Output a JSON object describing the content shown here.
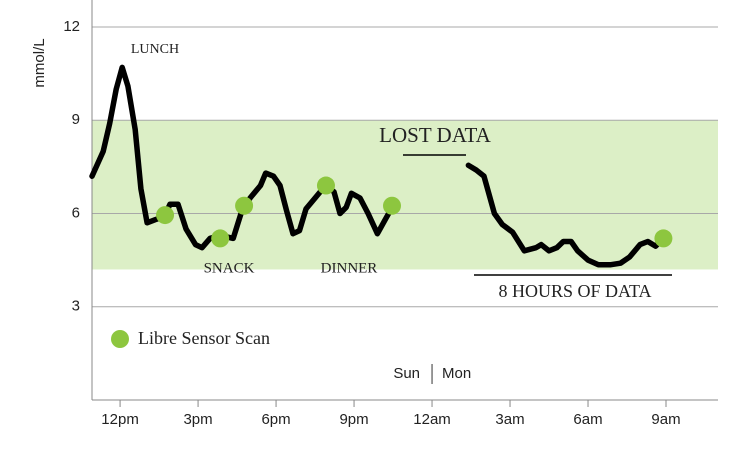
{
  "chart_data": {
    "type": "line",
    "y_label": "mmol/L",
    "ylim": [
      0,
      12.87
    ],
    "yticks": [
      3,
      6,
      9,
      12
    ],
    "xlim": [
      10.92,
      35
    ],
    "xticks": [
      {
        "value": 12,
        "label": "12pm"
      },
      {
        "value": 15,
        "label": "3pm"
      },
      {
        "value": 18,
        "label": "6pm"
      },
      {
        "value": 21,
        "label": "9pm"
      },
      {
        "value": 24,
        "label": "12am"
      },
      {
        "value": 27,
        "label": "3am"
      },
      {
        "value": 30,
        "label": "6am"
      },
      {
        "value": 33,
        "label": "9am"
      }
    ],
    "grid": true,
    "target_range": [
      4.2,
      9
    ],
    "target_color": "#dcefc6",
    "day_labels": [
      "Sun",
      "Mon"
    ],
    "annotations": [
      "LUNCH",
      "SNACK",
      "DINNER",
      "LOST DATA",
      "8 HOURS OF DATA"
    ],
    "series": [
      {
        "color": "#000000",
        "x": [
          10.92,
          11.35,
          11.6,
          11.85,
          12.08,
          12.3,
          12.58,
          12.8,
          13.04,
          13.35,
          13.7,
          13.92,
          14.23,
          14.54,
          14.9,
          15.15,
          15.46,
          15.85,
          16.35,
          16.65,
          17.0,
          17.4,
          17.6,
          17.9,
          18.15,
          18.4,
          18.65,
          18.9,
          19.15,
          19.5,
          19.9,
          20.23,
          20.46,
          20.7,
          20.9,
          21.23,
          21.54,
          21.9,
          22.23,
          22.5,
          null,
          25.4,
          25.7,
          26.0,
          26.4,
          26.7,
          27.1,
          27.55,
          28.0,
          28.2,
          28.5,
          28.8,
          29.05,
          29.35,
          29.6,
          30.0,
          30.4,
          30.85,
          31.25,
          31.6,
          32.0,
          32.3,
          32.6,
          32.9
        ],
        "values": [
          7.2,
          8.0,
          8.9,
          10.0,
          10.7,
          10.1,
          8.7,
          6.8,
          5.7,
          5.8,
          5.9,
          6.3,
          6.3,
          5.5,
          5.0,
          4.9,
          5.2,
          5.3,
          5.2,
          6.0,
          6.5,
          6.9,
          7.3,
          7.2,
          6.9,
          6.1,
          5.35,
          5.45,
          6.15,
          6.5,
          6.9,
          6.7,
          6.0,
          6.2,
          6.65,
          6.5,
          6.0,
          5.35,
          5.85,
          6.25,
          null,
          7.55,
          7.4,
          7.2,
          6.0,
          5.65,
          5.4,
          4.8,
          4.9,
          5.0,
          4.8,
          4.9,
          5.1,
          5.1,
          4.8,
          4.5,
          4.35,
          4.35,
          4.4,
          4.6,
          5.0,
          5.1,
          4.95,
          5.2
        ]
      },
      {
        "name": "Libre Sensor Scan",
        "color": "#8dc63f",
        "kind": "scatter",
        "x": [
          13.73,
          15.85,
          16.77,
          19.92,
          22.46,
          32.9
        ],
        "values": [
          5.95,
          5.2,
          6.25,
          6.9,
          6.25,
          5.2
        ]
      }
    ]
  }
}
